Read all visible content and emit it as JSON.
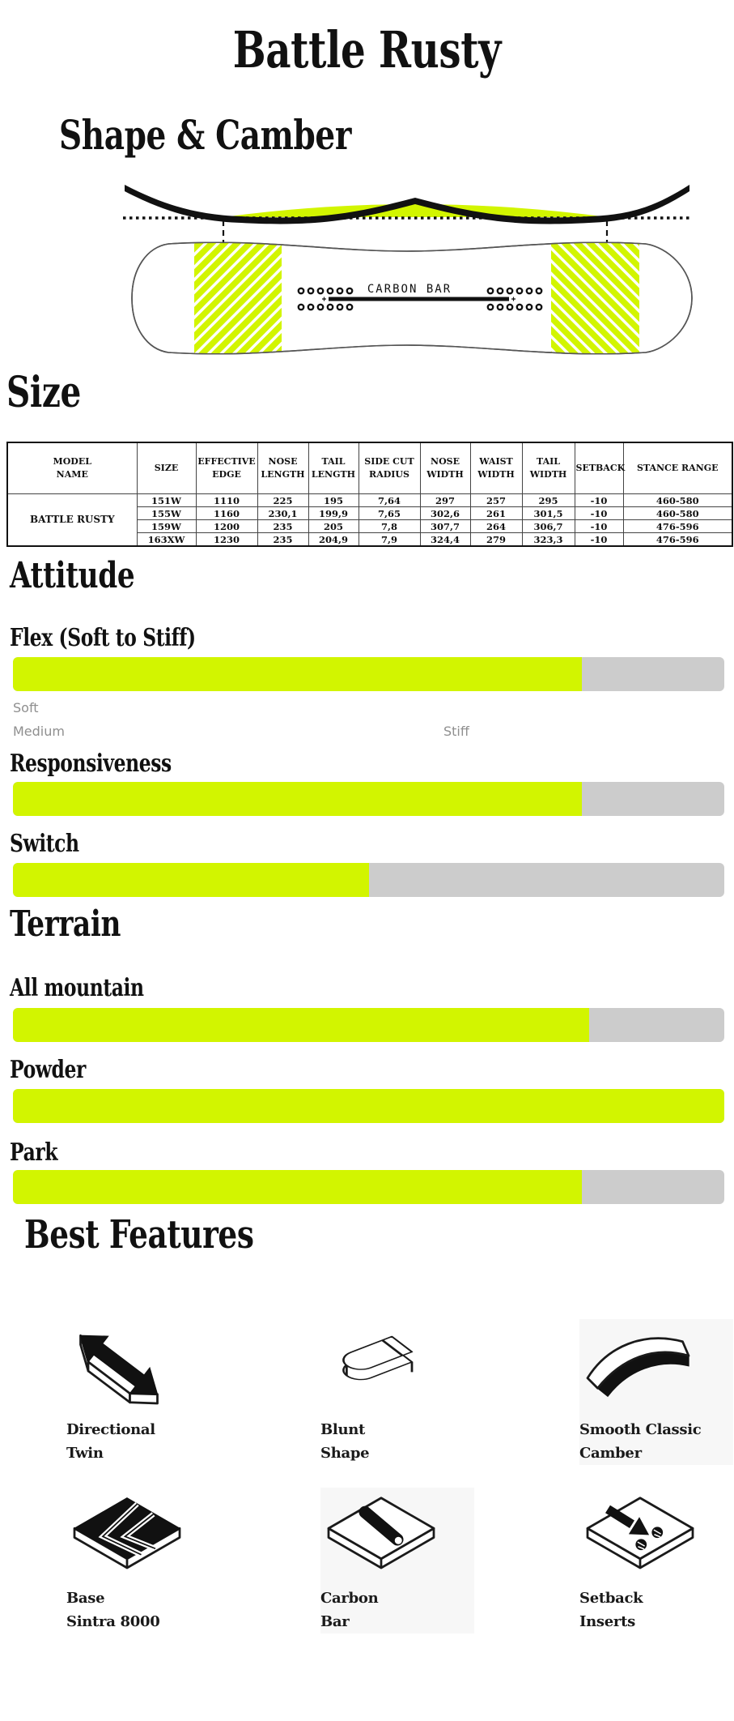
{
  "page": {
    "title": "Battle Rusty"
  },
  "colors": {
    "accent": "#d2f500",
    "track": "#cccccc"
  },
  "shape_camber": {
    "heading": "Shape & Camber",
    "diagram": {
      "carbon_bar_label": "CARBON BAR"
    }
  },
  "size": {
    "heading": "Size",
    "table": {
      "headers": [
        "MODEL\nNAME",
        "SIZE",
        "EFFECTIVE\nEDGE",
        "NOSE\nLENGTH",
        "TAIL\nLENGTH",
        "SIDE CUT\nRADIUS",
        "NOSE\nWIDTH",
        "WAIST\nWIDTH",
        "TAIL\nWIDTH",
        "SETBACK",
        "STANCE RANGE"
      ],
      "model_name": "BATTLE RUSTY",
      "rows": [
        [
          "151W",
          "1110",
          "225",
          "195",
          "7,64",
          "297",
          "257",
          "295",
          "-10",
          "460-580"
        ],
        [
          "155W",
          "1160",
          "230,1",
          "199,9",
          "7,65",
          "302,6",
          "261",
          "301,5",
          "-10",
          "460-580"
        ],
        [
          "159W",
          "1200",
          "235",
          "205",
          "7,8",
          "307,7",
          "264",
          "306,7",
          "-10",
          "476-596"
        ],
        [
          "163XW",
          "1230",
          "235",
          "204,9",
          "7,9",
          "324,4",
          "279",
          "323,3",
          "-10",
          "476-596"
        ]
      ]
    }
  },
  "attitude": {
    "heading": "Attitude",
    "bars": [
      {
        "label": "Flex (Soft to Stiff)",
        "percent": 80,
        "scale": [
          "Soft",
          "Medium",
          "Stiff"
        ]
      },
      {
        "label": "Responsiveness",
        "percent": 80
      },
      {
        "label": "Switch",
        "percent": 50
      }
    ]
  },
  "terrain": {
    "heading": "Terrain",
    "bars": [
      {
        "label": "All mountain",
        "percent": 81
      },
      {
        "label": "Powder",
        "percent": 100
      },
      {
        "label": "Park",
        "percent": 80
      }
    ]
  },
  "features": {
    "heading": "Best Features",
    "items": [
      {
        "line1": "Directional",
        "line2": "Twin",
        "icon": "directional-twin-icon"
      },
      {
        "line1": "Blunt",
        "line2": "Shape",
        "icon": "blunt-shape-icon"
      },
      {
        "line1": "Smooth Classic",
        "line2": "Camber",
        "icon": "smooth-classic-camber-icon"
      },
      {
        "line1": "Base",
        "line2": "Sintra 8000",
        "icon": "base-sintra-8000-icon"
      },
      {
        "line1": "Carbon",
        "line2": "Bar",
        "icon": "carbon-bar-icon"
      },
      {
        "line1": "Setback",
        "line2": "Inserts",
        "icon": "setback-inserts-icon"
      }
    ]
  }
}
